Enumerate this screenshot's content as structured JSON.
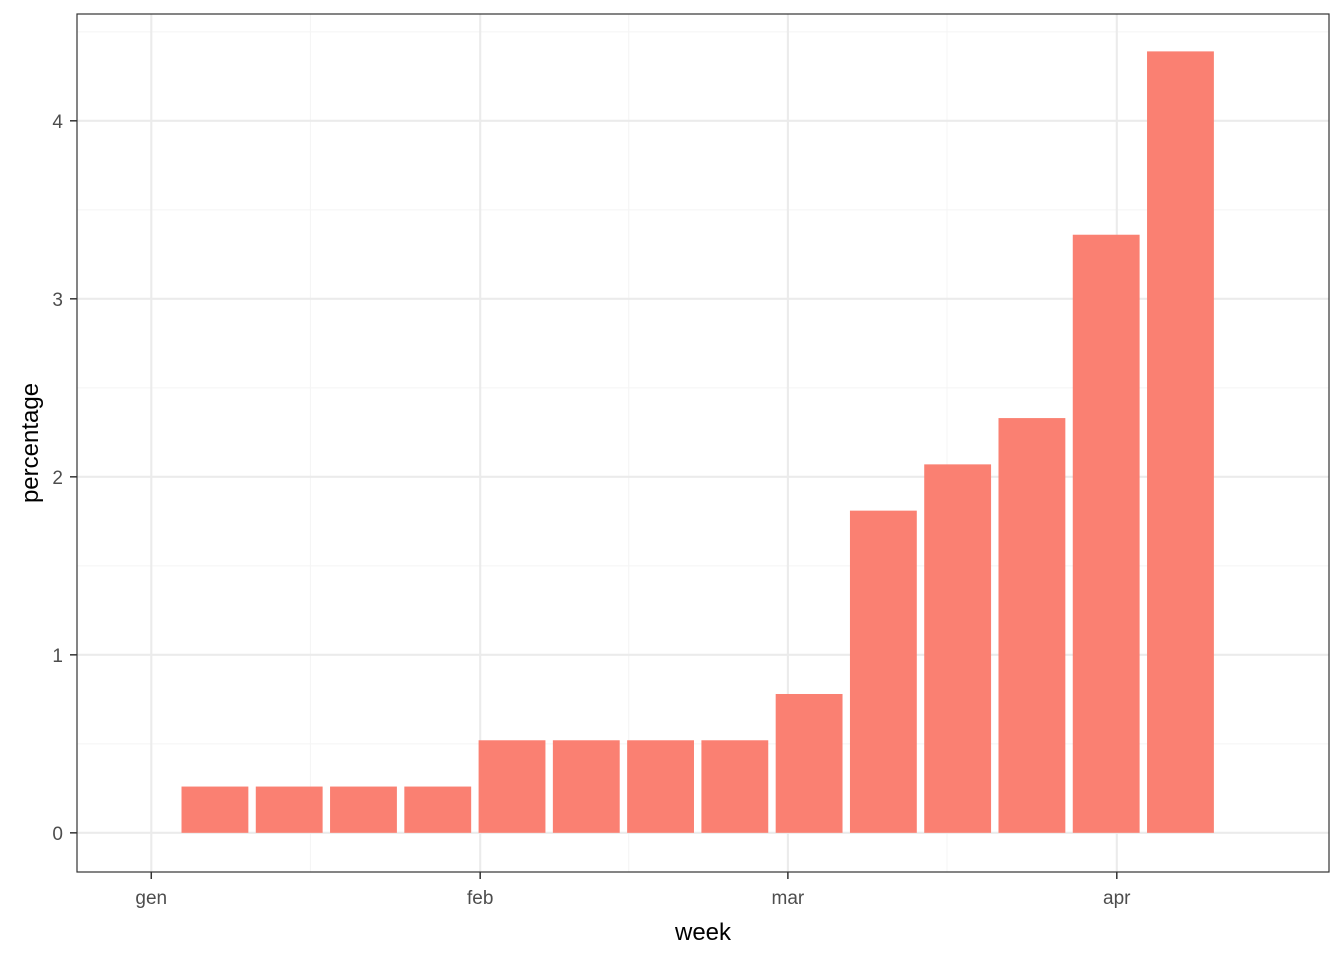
{
  "chart_data": {
    "type": "bar",
    "x_type": "date",
    "x": [
      "2020-01-07",
      "2020-01-14",
      "2020-01-21",
      "2020-01-28",
      "2020-02-04",
      "2020-02-11",
      "2020-02-18",
      "2020-02-25",
      "2020-03-03",
      "2020-03-10",
      "2020-03-17",
      "2020-03-24",
      "2020-03-31",
      "2020-04-07"
    ],
    "values": [
      0.26,
      0.26,
      0.26,
      0.26,
      0.52,
      0.52,
      0.52,
      0.52,
      0.78,
      1.81,
      2.07,
      2.33,
      3.36,
      4.39
    ],
    "bar_width_days": 6.3,
    "xlabel": "week",
    "ylabel": "percentage",
    "xlim": [
      "2019-12-25",
      "2020-04-21"
    ],
    "ylim": [
      -0.22,
      4.6
    ],
    "x_ticks": [
      {
        "date": "2020-01-01",
        "label": "gen"
      },
      {
        "date": "2020-02-01",
        "label": "feb"
      },
      {
        "date": "2020-03-01",
        "label": "mar"
      },
      {
        "date": "2020-04-01",
        "label": "apr"
      }
    ],
    "x_minor_ticks": [
      "2020-01-16",
      "2020-02-15",
      "2020-03-16"
    ],
    "y_ticks": [
      0,
      1,
      2,
      3,
      4
    ],
    "y_minor_ticks": [
      0.5,
      1.5,
      2.5,
      3.5,
      4.5
    ],
    "grid": true,
    "legend": "none",
    "colors": {
      "bar": "#fa8072",
      "grid_major": "#ebebeb",
      "grid_minor": "#f5f5f5",
      "panel_border": "#333333",
      "tick_text": "#4d4d4d",
      "title_text": "#000000"
    }
  }
}
